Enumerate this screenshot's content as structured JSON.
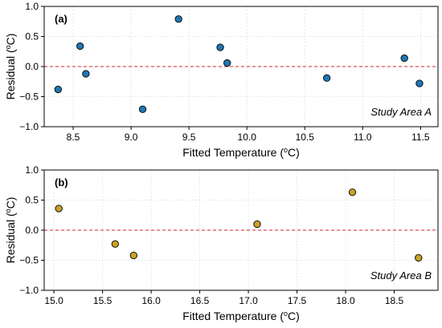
{
  "chart_data": [
    {
      "type": "scatter",
      "panel_label": "(a)",
      "annotation": "Study Area A",
      "xlabel_main": "Fitted Temperature (",
      "xlabel_sup": "o",
      "xlabel_end": "C)",
      "ylabel_main": "Residual (",
      "ylabel_sup": "o",
      "ylabel_end": "C)",
      "xlim": [
        8.25,
        11.65
      ],
      "ylim": [
        -1.0,
        1.0
      ],
      "xticks": [
        8.5,
        9.0,
        9.5,
        10.0,
        10.5,
        11.0,
        11.5
      ],
      "xtick_labels": [
        "8.5",
        "9.0",
        "9.5",
        "10.0",
        "10.5",
        "11.0",
        "11.5"
      ],
      "yticks": [
        -1.0,
        -0.5,
        0.0,
        0.5,
        1.0
      ],
      "ytick_labels": [
        "−1.0",
        "−0.5",
        "0.0",
        "0.5",
        "1.0"
      ],
      "grid": true,
      "reference_line": 0.0,
      "marker_color": "#1f77b4",
      "reference_color": "#d62728",
      "points": [
        {
          "x": 8.37,
          "y": -0.38
        },
        {
          "x": 8.56,
          "y": 0.34
        },
        {
          "x": 8.61,
          "y": -0.12
        },
        {
          "x": 9.1,
          "y": -0.71
        },
        {
          "x": 9.41,
          "y": 0.79
        },
        {
          "x": 9.77,
          "y": 0.32
        },
        {
          "x": 9.83,
          "y": 0.06
        },
        {
          "x": 10.69,
          "y": -0.19
        },
        {
          "x": 11.36,
          "y": 0.14
        },
        {
          "x": 11.49,
          "y": -0.28
        }
      ]
    },
    {
      "type": "scatter",
      "panel_label": "(b)",
      "annotation": "Study Area B",
      "xlabel_main": "Fitted Temperature (",
      "xlabel_sup": "o",
      "xlabel_end": "C)",
      "ylabel_main": "Residual (",
      "ylabel_sup": "o",
      "ylabel_end": "C)",
      "xlim": [
        14.9,
        18.95
      ],
      "ylim": [
        -1.0,
        1.0
      ],
      "xticks": [
        15.0,
        15.5,
        16.0,
        16.5,
        17.0,
        17.5,
        18.0,
        18.5
      ],
      "xtick_labels": [
        "15.0",
        "15.5",
        "16.0",
        "16.5",
        "17.0",
        "17.5",
        "18.0",
        "18.5"
      ],
      "yticks": [
        -1.0,
        -0.5,
        0.0,
        0.5,
        1.0
      ],
      "ytick_labels": [
        "−1.0",
        "−0.5",
        "0.0",
        "0.5",
        "1.0"
      ],
      "grid": true,
      "reference_line": 0.0,
      "marker_color": "#c9a227",
      "reference_color": "#d62728",
      "points": [
        {
          "x": 15.05,
          "y": 0.36
        },
        {
          "x": 15.63,
          "y": -0.23
        },
        {
          "x": 15.82,
          "y": -0.42
        },
        {
          "x": 17.09,
          "y": 0.1
        },
        {
          "x": 18.07,
          "y": 0.63
        },
        {
          "x": 18.75,
          "y": -0.46
        }
      ]
    }
  ]
}
